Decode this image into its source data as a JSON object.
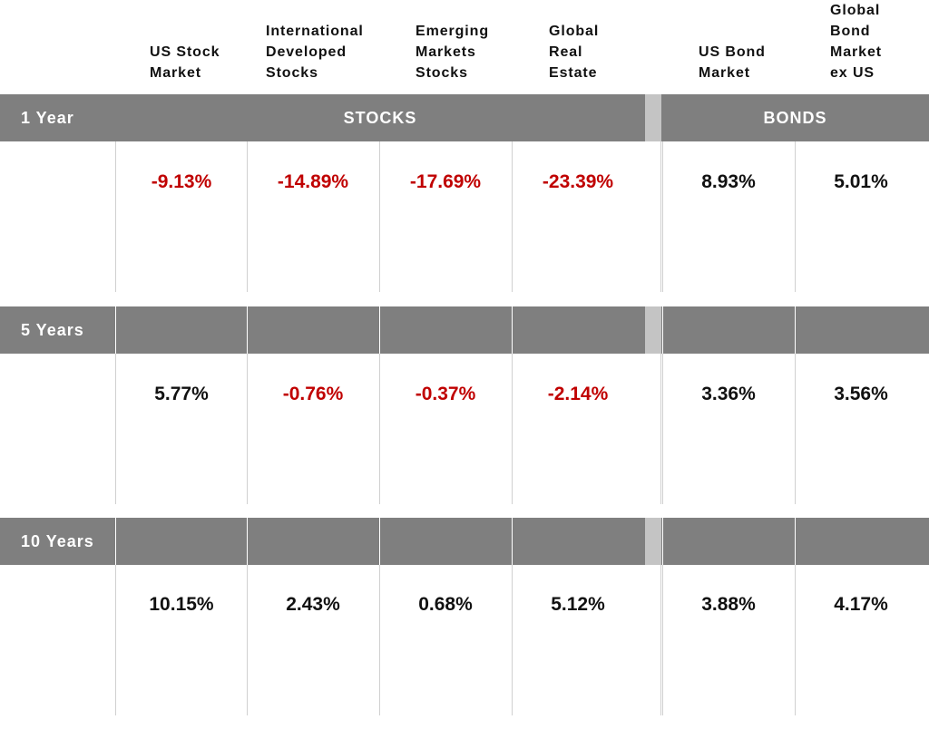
{
  "chart_data": {
    "type": "table",
    "columns": [
      {
        "label": "US Stock\nMarket",
        "group": "STOCKS"
      },
      {
        "label": "International\nDeveloped\nStocks",
        "group": "STOCKS"
      },
      {
        "label": "Emerging\nMarkets\nStocks",
        "group": "STOCKS"
      },
      {
        "label": "Global\nReal\nEstate",
        "group": "STOCKS"
      },
      {
        "label": "US Bond\nMarket",
        "group": "BONDS"
      },
      {
        "label": "Global\nBond\nMarket\nex US",
        "group": "BONDS"
      }
    ],
    "groups": [
      "STOCKS",
      "BONDS"
    ],
    "rows": [
      {
        "period": "1 Year",
        "values": [
          "-9.13%",
          "-14.89%",
          "-17.69%",
          "-23.39%",
          "8.93%",
          "5.01%"
        ]
      },
      {
        "period": "5 Years",
        "values": [
          "5.77%",
          "-0.76%",
          "-0.37%",
          "-2.14%",
          "3.36%",
          "3.56%"
        ]
      },
      {
        "period": "10 Years",
        "values": [
          "10.15%",
          "2.43%",
          "0.68%",
          "5.12%",
          "3.88%",
          "4.17%"
        ]
      }
    ],
    "colors": {
      "negative": "#c00000",
      "positive": "#111111",
      "band": "#7f7f7f"
    }
  }
}
